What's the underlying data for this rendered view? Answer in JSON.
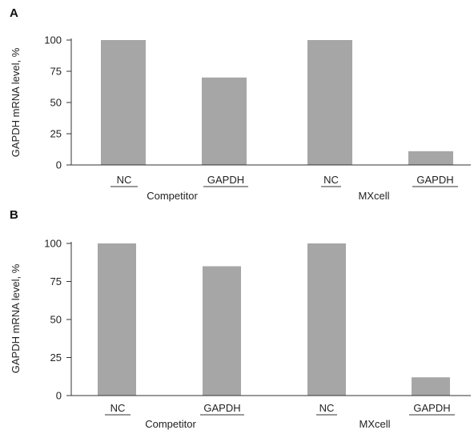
{
  "chart_data": [
    {
      "type": "bar",
      "panel_label": "A",
      "ylabel": "GAPDH mRNA level, %",
      "ylim": [
        0,
        100
      ],
      "yticks": [
        "0",
        "25",
        "50",
        "75",
        "100"
      ],
      "groups": [
        "Competitor",
        "MXcell"
      ],
      "categories": [
        "NC",
        "GAPDH",
        "NC",
        "GAPDH"
      ],
      "category_groups": [
        0,
        0,
        1,
        1
      ],
      "values": [
        100,
        70,
        100,
        11
      ],
      "colors": {
        "bar": "#a6a6a6"
      },
      "grid": false
    },
    {
      "type": "bar",
      "panel_label": "B",
      "ylabel": "GAPDH mRNA level, %",
      "ylim": [
        0,
        100
      ],
      "yticks": [
        "0",
        "25",
        "50",
        "75",
        "100"
      ],
      "groups": [
        "Competitor",
        "MXcell"
      ],
      "categories": [
        "NC",
        "GAPDH",
        "NC",
        "GAPDH"
      ],
      "category_groups": [
        0,
        0,
        1,
        1
      ],
      "values": [
        100,
        85,
        100,
        12
      ],
      "colors": {
        "bar": "#a6a6a6"
      },
      "grid": false
    }
  ]
}
